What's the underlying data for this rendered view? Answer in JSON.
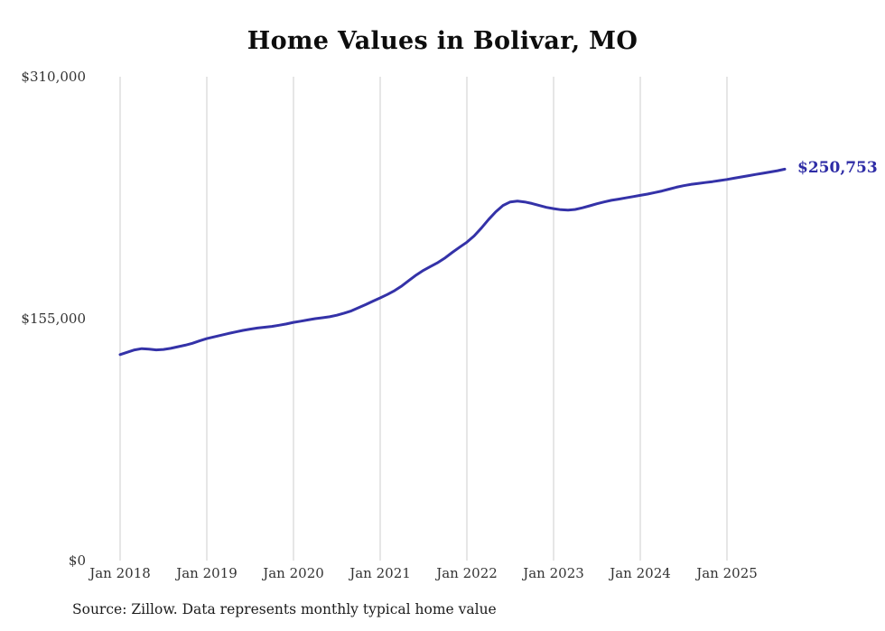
{
  "chart_data": {
    "type": "line",
    "title": "Home Values in Bolivar, MO",
    "series_name": "Monthly typical home value",
    "unit": "$",
    "x_start": "Jan 2018",
    "x_frequency": "monthly",
    "x_tick_labels": [
      "Jan 2018",
      "Jan 2019",
      "Jan 2020",
      "Jan 2021",
      "Jan 2022",
      "Jan 2023",
      "Jan 2024",
      "Jan 2025"
    ],
    "y_ticks": [
      {
        "value": 310000,
        "label": "$310,000"
      },
      {
        "value": 155000,
        "label": "$155,000"
      },
      {
        "value": 0,
        "label": "$0"
      }
    ],
    "ylim": [
      0,
      310000
    ],
    "grid": "vertical-only",
    "legend": "none",
    "end_label": "$250,753",
    "last_value": 250753,
    "line_color": "#3432a8",
    "grid_color": "#cccccc",
    "values": [
      132000,
      133500,
      135000,
      135800,
      135500,
      135000,
      135300,
      136000,
      137000,
      138000,
      139200,
      140800,
      142200,
      143300,
      144400,
      145500,
      146500,
      147500,
      148300,
      149000,
      149500,
      150000,
      150800,
      151600,
      152600,
      153400,
      154200,
      155000,
      155600,
      156200,
      157200,
      158500,
      160000,
      162000,
      164000,
      166200,
      168300,
      170500,
      173000,
      176000,
      179500,
      183000,
      186000,
      188500,
      191000,
      194000,
      197500,
      200800,
      204000,
      208000,
      213000,
      218500,
      223500,
      227500,
      229800,
      230300,
      229800,
      228800,
      227500,
      226300,
      225500,
      224800,
      224500,
      225000,
      226000,
      227300,
      228600,
      229800,
      230800,
      231600,
      232400,
      233200,
      234000,
      234800,
      235800,
      236800,
      238000,
      239200,
      240200,
      241000,
      241600,
      242200,
      242800,
      243500,
      244200,
      245000,
      245800,
      246600,
      247400,
      248200,
      249000,
      249800,
      250753
    ]
  },
  "footer": {
    "source": "Source: Zillow. Data represents monthly typical home value"
  }
}
